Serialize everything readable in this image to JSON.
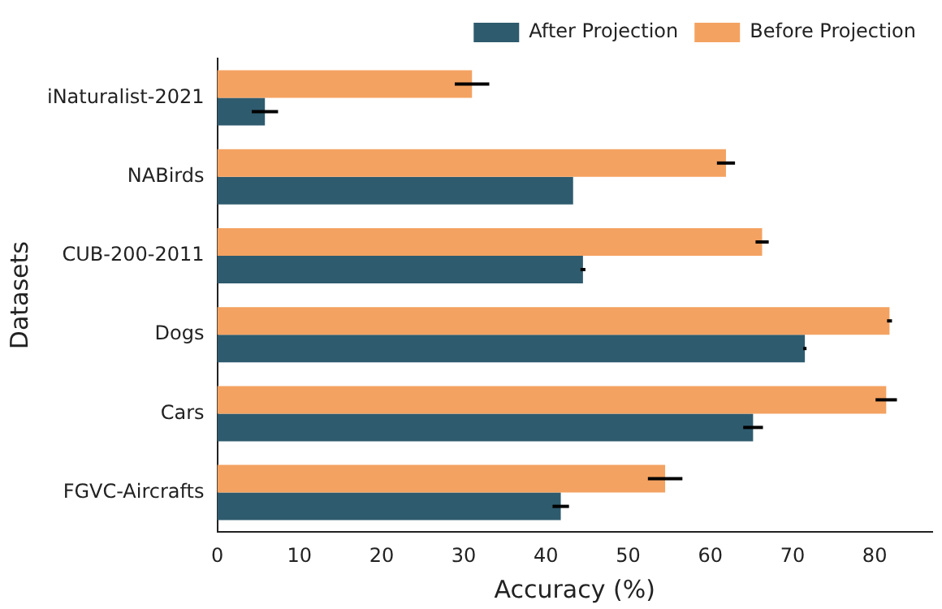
{
  "chart_data": {
    "type": "bar",
    "orientation": "horizontal",
    "xlabel": "Accuracy (%)",
    "ylabel": "Datasets",
    "categories": [
      "iNaturalist-2021",
      "NABirds",
      "CUB-200-2011",
      "Dogs",
      "Cars",
      "FGVC-Aircrafts"
    ],
    "series": [
      {
        "name": "After Projection",
        "color": "#2e5b6e",
        "values": [
          5.8,
          43.3,
          44.5,
          71.5,
          65.2,
          41.8
        ],
        "errors": [
          1.6,
          null,
          0.3,
          0.2,
          1.2,
          1.0
        ]
      },
      {
        "name": "Before Projection",
        "color": "#f4a261",
        "values": [
          31.0,
          61.9,
          66.3,
          81.8,
          81.4,
          54.5
        ],
        "errors": [
          2.1,
          1.1,
          0.8,
          0.3,
          1.3,
          2.1
        ]
      }
    ],
    "xlim": [
      0,
      87
    ],
    "xticks": [
      0,
      10,
      20,
      30,
      40,
      50,
      60,
      70,
      80
    ],
    "grid": false,
    "legend": "top right"
  }
}
